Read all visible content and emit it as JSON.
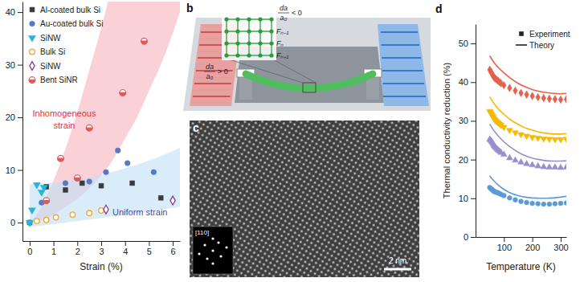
{
  "chart_data": [
    {
      "type": "scatter",
      "xlabel": "Strain (%)",
      "xlim": [
        -0.3,
        6.3
      ],
      "xticks": [
        0,
        1,
        2,
        3,
        4,
        5,
        6
      ],
      "ylim": [
        -3.5,
        42
      ],
      "yticks": [
        0,
        10,
        20,
        30,
        40
      ],
      "legend": "upper left",
      "series": [
        {
          "name": "Al-coated bulk Si",
          "color": "#3a3a3a",
          "marker": "square",
          "x": [
            0,
            0.7,
            1.5,
            2.2,
            3.0,
            4.3,
            5.5
          ],
          "values": [
            0,
            6.8,
            6.2,
            7.5,
            7.0,
            7.5,
            4.7
          ]
        },
        {
          "name": "Au-coated bulk Si",
          "color": "#5878c4",
          "marker": "circle",
          "x": [
            0,
            0.5,
            1.5,
            2.5,
            3.2,
            3.7,
            4.1,
            5.2
          ],
          "values": [
            0,
            3.8,
            7.5,
            7.8,
            9.6,
            13.7,
            11.3,
            9.6
          ]
        },
        {
          "name": "SiNW",
          "color": "#2bb3d6",
          "marker": "triangle-down",
          "x": [
            0,
            0.1,
            0.3,
            0.5,
            0.6
          ],
          "values": [
            0,
            2.4,
            7.2,
            5.8,
            6.7
          ]
        },
        {
          "name": "Bulk Si",
          "color": "#f0a83c",
          "marker": "circle-open",
          "x": [
            0.3,
            0.7,
            1.1,
            1.8,
            2.5,
            3.0
          ],
          "values": [
            0.3,
            0.5,
            1.0,
            1.5,
            1.8,
            2.3
          ]
        },
        {
          "name": "SiNW",
          "color": "#8b3a9e",
          "marker": "diamond-open",
          "x": [
            3.2,
            6.0
          ],
          "values": [
            2.5,
            4.2
          ]
        },
        {
          "name": "Bent SiNR",
          "color": "#e05a5a",
          "marker": "circle-half",
          "x": [
            0.7,
            1.3,
            2.0,
            2.5,
            3.9,
            4.8
          ],
          "values": [
            4.2,
            12.2,
            8.5,
            18.0,
            24.7,
            34.5
          ]
        }
      ],
      "bands": [
        {
          "color": "#f6b3bd",
          "x": [
            0,
            0.5,
            1,
            1.5,
            2,
            2.5,
            3,
            3.5,
            4,
            4.5,
            5,
            5.5,
            6,
            6.3
          ],
          "lower": [
            0,
            0.5,
            1.5,
            3,
            4.5,
            6.5,
            9,
            12,
            16,
            20,
            25,
            30,
            36,
            40
          ],
          "upper": [
            0,
            3,
            8,
            14,
            21,
            29,
            37,
            46,
            55,
            65,
            76,
            87,
            99,
            106
          ]
        },
        {
          "color": "#bfe0f5",
          "x": [
            0,
            1,
            2,
            3,
            4,
            5,
            6,
            6.3
          ],
          "lower": [
            -0.8,
            -0.3,
            0.3,
            0.9,
            1.5,
            2.1,
            2.8,
            3.0
          ],
          "upper": [
            7.3,
            7.6,
            8.2,
            9.1,
            10.3,
            11.8,
            13.6,
            14.2
          ]
        }
      ],
      "annotations": [
        {
          "lines": [
            "Inhomogeneous",
            "strain"
          ],
          "color": "#d9363e"
        },
        {
          "lines": [
            "Uniform strain"
          ],
          "color": "#3d55a8"
        }
      ]
    },
    {
      "type": "line",
      "xlabel": "Temperature (K)",
      "ylabel": "Thermal conductivity reduction (%)",
      "xlim": [
        0,
        320
      ],
      "xticks": [
        100,
        200,
        300
      ],
      "ylim": [
        0,
        55
      ],
      "yticks": [
        0,
        10,
        20,
        30,
        40,
        50
      ],
      "legend": "upper right",
      "legend_items": [
        {
          "label": "Experiment",
          "marker": "square"
        },
        {
          "label": "Theory",
          "line_style": "solid"
        }
      ],
      "series": [
        {
          "type": "scatter",
          "color": "#e2624f",
          "marker": "diamond",
          "x": [
            50,
            53,
            56,
            59,
            62,
            65,
            68,
            72,
            76,
            80,
            85,
            90,
            100,
            120,
            140,
            160,
            180,
            200,
            220,
            240,
            260,
            280,
            300,
            320
          ],
          "values": [
            43.2,
            42.8,
            42.5,
            42.0,
            41.6,
            41.3,
            41.0,
            40.8,
            40.5,
            40.3,
            40.0,
            39.7,
            39.2,
            38.5,
            37.8,
            37.2,
            36.8,
            36.4,
            36.1,
            35.9,
            35.7,
            35.6,
            35.5,
            35.6
          ]
        },
        {
          "type": "line",
          "color": "#e2624f",
          "line_style": "solid",
          "x": [
            50,
            60,
            70,
            80,
            100,
            125,
            150,
            175,
            200,
            225,
            250,
            275,
            300,
            320
          ],
          "values": [
            46.8,
            45.6,
            44.6,
            43.8,
            42.4,
            40.9,
            39.7,
            38.8,
            38.1,
            37.6,
            37.3,
            37.1,
            37.0,
            37.1
          ]
        },
        {
          "type": "scatter",
          "color": "#f5b900",
          "marker": "triangle-down",
          "x": [
            50,
            53,
            56,
            59,
            62,
            65,
            68,
            72,
            76,
            80,
            85,
            90,
            100,
            120,
            140,
            160,
            180,
            200,
            220,
            240,
            260,
            280,
            300,
            320
          ],
          "values": [
            32.5,
            32.2,
            31.8,
            31.4,
            31.0,
            30.6,
            30.3,
            30.0,
            29.7,
            29.5,
            29.2,
            28.9,
            28.4,
            27.6,
            27.0,
            26.5,
            26.1,
            25.8,
            25.6,
            25.4,
            25.3,
            25.2,
            25.2,
            25.3
          ]
        },
        {
          "type": "line",
          "color": "#f5b900",
          "line_style": "solid",
          "x": [
            50,
            60,
            70,
            80,
            100,
            125,
            150,
            175,
            200,
            225,
            250,
            275,
            300,
            320
          ],
          "values": [
            36.2,
            35.0,
            34.0,
            33.1,
            31.7,
            30.2,
            29.1,
            28.2,
            27.6,
            27.1,
            26.8,
            26.6,
            26.6,
            26.7
          ]
        },
        {
          "type": "scatter",
          "color": "#9a8ecf",
          "marker": "triangle-up",
          "x": [
            50,
            53,
            56,
            59,
            62,
            65,
            68,
            72,
            76,
            80,
            85,
            90,
            100,
            120,
            140,
            160,
            180,
            200,
            220,
            240,
            260,
            280,
            300,
            320
          ],
          "values": [
            25.2,
            25.0,
            24.7,
            24.4,
            24.0,
            23.6,
            23.3,
            23.0,
            22.7,
            22.4,
            22.1,
            21.8,
            21.3,
            20.4,
            19.8,
            19.3,
            18.9,
            18.6,
            18.3,
            18.1,
            18.0,
            18.0,
            17.9,
            18.0
          ]
        },
        {
          "type": "line",
          "color": "#9a8ecf",
          "line_style": "solid",
          "x": [
            50,
            60,
            70,
            80,
            100,
            125,
            150,
            175,
            200,
            225,
            250,
            275,
            300,
            320
          ],
          "values": [
            29.2,
            28.0,
            27.0,
            26.1,
            24.6,
            23.1,
            21.9,
            21.0,
            20.4,
            20.0,
            19.7,
            19.6,
            19.6,
            19.7
          ]
        },
        {
          "type": "scatter",
          "color": "#5b9bd5",
          "marker": "circle",
          "x": [
            50,
            53,
            56,
            59,
            62,
            65,
            68,
            72,
            76,
            80,
            85,
            90,
            100,
            120,
            140,
            160,
            180,
            200,
            220,
            240,
            260,
            280,
            300,
            320
          ],
          "values": [
            12.8,
            12.6,
            12.4,
            12.2,
            12.0,
            11.8,
            11.7,
            11.6,
            11.5,
            11.4,
            11.2,
            11.0,
            10.7,
            10.1,
            9.6,
            9.2,
            8.9,
            8.7,
            8.6,
            8.5,
            8.5,
            8.6,
            8.7,
            8.8
          ]
        },
        {
          "type": "line",
          "color": "#5b9bd5",
          "line_style": "solid",
          "x": [
            50,
            60,
            70,
            80,
            100,
            125,
            150,
            175,
            200,
            225,
            250,
            275,
            300,
            320
          ],
          "values": [
            15.8,
            14.9,
            14.1,
            13.4,
            12.3,
            11.3,
            10.7,
            10.3,
            10.1,
            10.0,
            10.0,
            10.1,
            10.3,
            10.5
          ]
        }
      ]
    }
  ],
  "panels": {
    "b": {
      "label": "b",
      "strain_labels": [
        {
          "numerator": "da",
          "denominator": "a₀",
          "relation": "< 0"
        },
        {
          "numerator": "da",
          "denominator": "a₀",
          "relation": "> 0"
        }
      ],
      "forces": [
        "Fₙ₋₁",
        "Fₙ",
        "Fₙ₊₁"
      ]
    },
    "c": {
      "label": "c",
      "inset_label": "[110]",
      "scale_bar": "2 nm"
    },
    "d": {
      "label": "d"
    }
  }
}
